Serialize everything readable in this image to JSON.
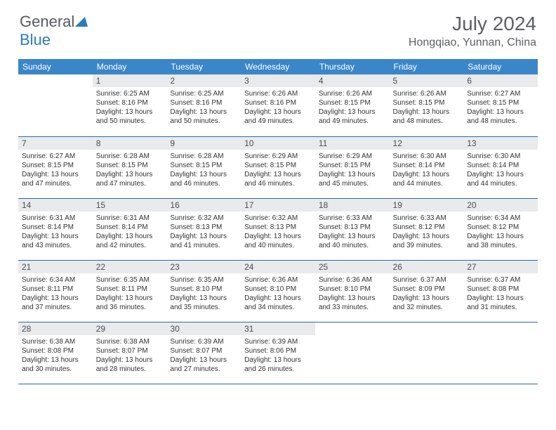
{
  "logo": {
    "part1": "General",
    "part2": "Blue"
  },
  "title": "July 2024",
  "location": "Hongqiao, Yunnan, China",
  "colors": {
    "header_bg": "#3a86c8",
    "header_text": "#ffffff",
    "daynum_bg": "#e8eaec",
    "row_border": "#2d6aa3",
    "title_color": "#5b5f63",
    "logo_accent": "#2b7bbf"
  },
  "weekdays": [
    "Sunday",
    "Monday",
    "Tuesday",
    "Wednesday",
    "Thursday",
    "Friday",
    "Saturday"
  ],
  "weeks": [
    [
      null,
      {
        "n": "1",
        "sr": "6:25 AM",
        "ss": "8:16 PM",
        "dl": "13 hours and 50 minutes."
      },
      {
        "n": "2",
        "sr": "6:25 AM",
        "ss": "8:16 PM",
        "dl": "13 hours and 50 minutes."
      },
      {
        "n": "3",
        "sr": "6:26 AM",
        "ss": "8:16 PM",
        "dl": "13 hours and 49 minutes."
      },
      {
        "n": "4",
        "sr": "6:26 AM",
        "ss": "8:15 PM",
        "dl": "13 hours and 49 minutes."
      },
      {
        "n": "5",
        "sr": "6:26 AM",
        "ss": "8:15 PM",
        "dl": "13 hours and 48 minutes."
      },
      {
        "n": "6",
        "sr": "6:27 AM",
        "ss": "8:15 PM",
        "dl": "13 hours and 48 minutes."
      }
    ],
    [
      {
        "n": "7",
        "sr": "6:27 AM",
        "ss": "8:15 PM",
        "dl": "13 hours and 47 minutes."
      },
      {
        "n": "8",
        "sr": "6:28 AM",
        "ss": "8:15 PM",
        "dl": "13 hours and 47 minutes."
      },
      {
        "n": "9",
        "sr": "6:28 AM",
        "ss": "8:15 PM",
        "dl": "13 hours and 46 minutes."
      },
      {
        "n": "10",
        "sr": "6:29 AM",
        "ss": "8:15 PM",
        "dl": "13 hours and 46 minutes."
      },
      {
        "n": "11",
        "sr": "6:29 AM",
        "ss": "8:15 PM",
        "dl": "13 hours and 45 minutes."
      },
      {
        "n": "12",
        "sr": "6:30 AM",
        "ss": "8:14 PM",
        "dl": "13 hours and 44 minutes."
      },
      {
        "n": "13",
        "sr": "6:30 AM",
        "ss": "8:14 PM",
        "dl": "13 hours and 44 minutes."
      }
    ],
    [
      {
        "n": "14",
        "sr": "6:31 AM",
        "ss": "8:14 PM",
        "dl": "13 hours and 43 minutes."
      },
      {
        "n": "15",
        "sr": "6:31 AM",
        "ss": "8:14 PM",
        "dl": "13 hours and 42 minutes."
      },
      {
        "n": "16",
        "sr": "6:32 AM",
        "ss": "8:13 PM",
        "dl": "13 hours and 41 minutes."
      },
      {
        "n": "17",
        "sr": "6:32 AM",
        "ss": "8:13 PM",
        "dl": "13 hours and 40 minutes."
      },
      {
        "n": "18",
        "sr": "6:33 AM",
        "ss": "8:13 PM",
        "dl": "13 hours and 40 minutes."
      },
      {
        "n": "19",
        "sr": "6:33 AM",
        "ss": "8:12 PM",
        "dl": "13 hours and 39 minutes."
      },
      {
        "n": "20",
        "sr": "6:34 AM",
        "ss": "8:12 PM",
        "dl": "13 hours and 38 minutes."
      }
    ],
    [
      {
        "n": "21",
        "sr": "6:34 AM",
        "ss": "8:11 PM",
        "dl": "13 hours and 37 minutes."
      },
      {
        "n": "22",
        "sr": "6:35 AM",
        "ss": "8:11 PM",
        "dl": "13 hours and 36 minutes."
      },
      {
        "n": "23",
        "sr": "6:35 AM",
        "ss": "8:10 PM",
        "dl": "13 hours and 35 minutes."
      },
      {
        "n": "24",
        "sr": "6:36 AM",
        "ss": "8:10 PM",
        "dl": "13 hours and 34 minutes."
      },
      {
        "n": "25",
        "sr": "6:36 AM",
        "ss": "8:10 PM",
        "dl": "13 hours and 33 minutes."
      },
      {
        "n": "26",
        "sr": "6:37 AM",
        "ss": "8:09 PM",
        "dl": "13 hours and 32 minutes."
      },
      {
        "n": "27",
        "sr": "6:37 AM",
        "ss": "8:08 PM",
        "dl": "13 hours and 31 minutes."
      }
    ],
    [
      {
        "n": "28",
        "sr": "6:38 AM",
        "ss": "8:08 PM",
        "dl": "13 hours and 30 minutes."
      },
      {
        "n": "29",
        "sr": "6:38 AM",
        "ss": "8:07 PM",
        "dl": "13 hours and 28 minutes."
      },
      {
        "n": "30",
        "sr": "6:39 AM",
        "ss": "8:07 PM",
        "dl": "13 hours and 27 minutes."
      },
      {
        "n": "31",
        "sr": "6:39 AM",
        "ss": "8:06 PM",
        "dl": "13 hours and 26 minutes."
      },
      null,
      null,
      null
    ]
  ],
  "labels": {
    "sunrise": "Sunrise:",
    "sunset": "Sunset:",
    "daylight": "Daylight:"
  }
}
